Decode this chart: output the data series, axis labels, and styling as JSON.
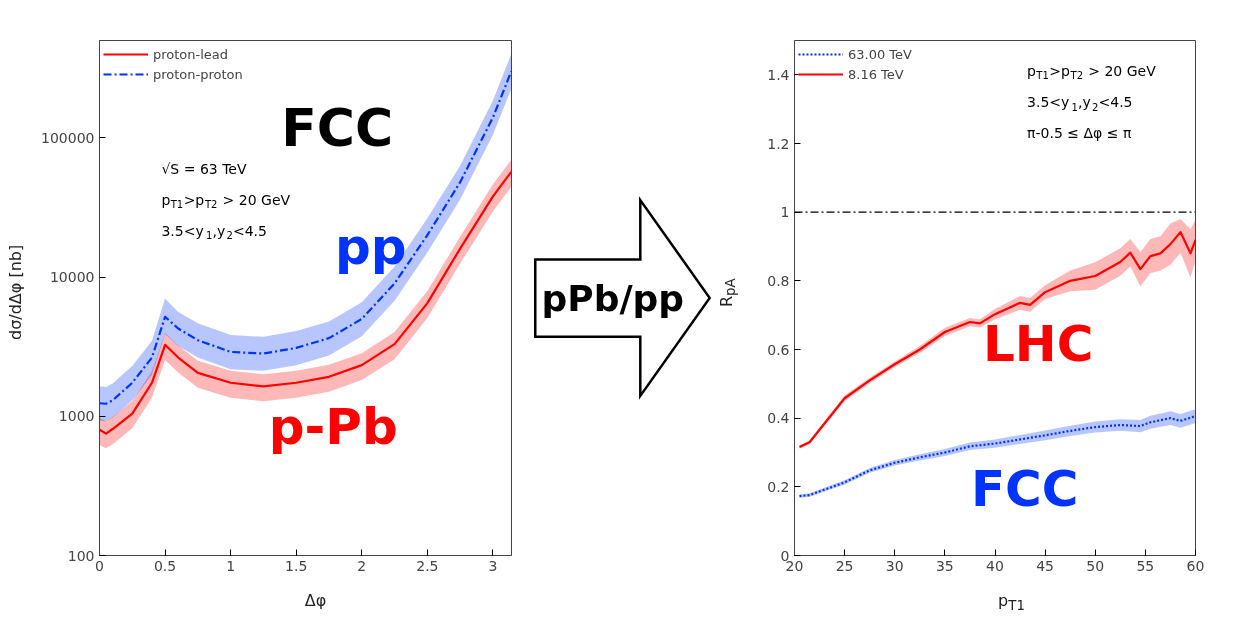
{
  "chart_data": [
    {
      "type": "line",
      "xlabel": "Δφ",
      "ylabel": "dσ/dΔφ [nb]",
      "log": "y",
      "xlim": [
        0,
        3.14159
      ],
      "ylim": [
        100,
        500000
      ],
      "xticks": [
        0,
        0.5,
        1,
        1.5,
        2,
        2.5,
        3
      ],
      "yticks": [
        100,
        1000,
        10000,
        100000
      ],
      "legend": "top left",
      "x": [
        0,
        0.05,
        0.1,
        0.25,
        0.4,
        0.5,
        0.6,
        0.75,
        1.0,
        1.25,
        1.5,
        1.75,
        2.0,
        2.25,
        2.5,
        2.75,
        3.0,
        3.14
      ],
      "series": [
        {
          "name": "proton-lead",
          "color": "#ff0000",
          "line_style": "solid",
          "values": [
            800,
            750,
            810,
            1045,
            1740,
            3260,
            2640,
            2050,
            1740,
            1640,
            1740,
            1920,
            2330,
            3300,
            6500,
            16000,
            38000,
            57000
          ],
          "lower": [
            620,
            590,
            630,
            820,
            1360,
            2540,
            2060,
            1600,
            1360,
            1280,
            1360,
            1500,
            1820,
            2570,
            5070,
            12500,
            29600,
            44500
          ],
          "upper": [
            980,
            920,
            990,
            1280,
            2120,
            3980,
            3220,
            2500,
            2120,
            2000,
            2120,
            2340,
            2840,
            4030,
            7930,
            19500,
            46400,
            69500
          ]
        },
        {
          "name": "proton-proton",
          "color": "#0033ff",
          "line_style": "dashed",
          "values": [
            1240,
            1230,
            1300,
            1740,
            2640,
            5180,
            4270,
            3520,
            2900,
            2820,
            3100,
            3640,
            5000,
            9000,
            20000,
            48000,
            140000,
            300000
          ],
          "lower": [
            930,
            920,
            975,
            1300,
            1980,
            3900,
            3200,
            2640,
            2180,
            2120,
            2330,
            2730,
            3750,
            6750,
            15000,
            36000,
            105000,
            225000
          ],
          "upper": [
            1640,
            1620,
            1720,
            2300,
            3480,
            7000,
            5600,
            4650,
            3830,
            3720,
            4090,
            4800,
            6600,
            11900,
            26400,
            63000,
            185000,
            400000
          ]
        }
      ],
      "annotations": [
        "FCC",
        "√S = 63 TeV",
        "p$_{T1}$>p$_{T2}$ > 20 GeV",
        "3.5<y$_{1}$,y$_{2}$<4.5",
        "pp",
        "p-Pb"
      ]
    },
    {
      "type": "other",
      "annotations": [
        "pPb/pp"
      ]
    },
    {
      "type": "line",
      "xlabel": "p$_{T1}$",
      "ylabel": "R$_{pA}$",
      "xlim": [
        20,
        60
      ],
      "ylim": [
        0,
        1.5
      ],
      "xticks": [
        20,
        25,
        30,
        35,
        40,
        45,
        50,
        55,
        60
      ],
      "yticks": [
        0,
        0.2,
        0.4,
        0.6,
        0.8,
        1,
        1.2,
        1.4
      ],
      "legend": "top left",
      "ref_lines": [
        {
          "axis": "y",
          "value": 1,
          "color": "#000000",
          "line_style": "dashed"
        }
      ],
      "series": [
        {
          "name": "63.00 TeV",
          "color": "#0033ff",
          "line_style": "dotted",
          "x": [
            20.5,
            21.5,
            25,
            27.5,
            30,
            32.5,
            35,
            37.5,
            40,
            42.5,
            45,
            47.5,
            50,
            52.5,
            54.5,
            55.5,
            57.5,
            58.5,
            60
          ],
          "values": [
            0.173,
            0.176,
            0.213,
            0.248,
            0.27,
            0.286,
            0.3,
            0.318,
            0.326,
            0.338,
            0.35,
            0.363,
            0.374,
            0.38,
            0.377,
            0.388,
            0.4,
            0.392,
            0.406
          ],
          "lower": [
            0.168,
            0.171,
            0.207,
            0.241,
            0.262,
            0.277,
            0.29,
            0.307,
            0.314,
            0.325,
            0.336,
            0.348,
            0.358,
            0.363,
            0.359,
            0.369,
            0.38,
            0.372,
            0.386
          ],
          "upper": [
            0.178,
            0.181,
            0.219,
            0.255,
            0.278,
            0.295,
            0.31,
            0.329,
            0.338,
            0.351,
            0.364,
            0.378,
            0.39,
            0.397,
            0.395,
            0.407,
            0.42,
            0.412,
            0.426
          ]
        },
        {
          "name": "8.16 TeV",
          "color": "#ff0000",
          "line_style": "solid",
          "x": [
            20.5,
            21.5,
            25,
            27.5,
            30,
            32.5,
            35,
            37.5,
            38.5,
            40,
            42.5,
            43.5,
            45,
            47.5,
            50,
            52.5,
            53.5,
            54.5,
            55.5,
            56.5,
            57.5,
            58.5,
            59.5,
            60
          ],
          "values": [
            0.316,
            0.33,
            0.458,
            0.51,
            0.557,
            0.6,
            0.651,
            0.68,
            0.676,
            0.703,
            0.736,
            0.73,
            0.767,
            0.8,
            0.814,
            0.855,
            0.882,
            0.834,
            0.872,
            0.88,
            0.907,
            0.942,
            0.88,
            0.919
          ],
          "lower": [
            0.311,
            0.325,
            0.45,
            0.502,
            0.549,
            0.59,
            0.639,
            0.668,
            0.664,
            0.688,
            0.716,
            0.71,
            0.747,
            0.77,
            0.774,
            0.815,
            0.842,
            0.784,
            0.822,
            0.83,
            0.847,
            0.882,
            0.81,
            0.859
          ],
          "upper": [
            0.321,
            0.335,
            0.466,
            0.518,
            0.565,
            0.61,
            0.663,
            0.692,
            0.688,
            0.718,
            0.756,
            0.75,
            0.787,
            0.83,
            0.854,
            0.895,
            0.922,
            0.884,
            0.922,
            0.93,
            0.967,
            0.98,
            0.95,
            0.979
          ]
        }
      ],
      "annotations": [
        "p$_{T1}$>p$_{T2}$ > 20 GeV",
        "3.5<y$_{1}$,y$_{2}$<4.5",
        "π-0.5 ≤ Δφ ≤ π",
        "LHC",
        "FCC"
      ]
    }
  ]
}
